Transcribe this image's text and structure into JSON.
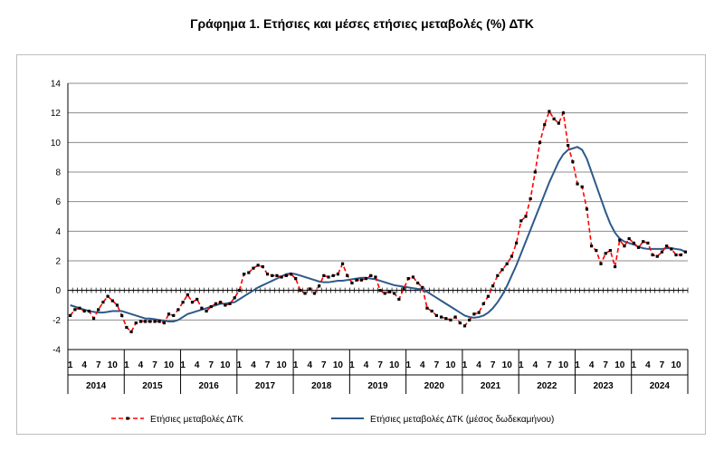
{
  "title": "Γράφημα 1. Ετήσιες και μέσες ετήσιες μεταβολές (%) ΔΤΚ",
  "chart_data": {
    "type": "line",
    "title": "Γράφημα 1. Ετήσιες και μέσες ετήσιες μεταβολές (%) ΔΤΚ",
    "xlabel": "",
    "ylabel": "",
    "ylim": [
      -4,
      14
    ],
    "yticks": [
      -4,
      -2,
      0,
      2,
      4,
      6,
      8,
      10,
      12,
      14
    ],
    "grid": true,
    "legend_position": "bottom",
    "month_tick_labels": [
      "1",
      "4",
      "7",
      "10"
    ],
    "years": [
      "2014",
      "2015",
      "2016",
      "2017",
      "2018",
      "2019",
      "2020",
      "2021",
      "2022",
      "2023",
      "2024"
    ],
    "x_start": "2014-01",
    "x_end": "2024-12",
    "series": [
      {
        "name": "Ετήσιες μεταβολές ΔΤΚ",
        "color": "#ff0000",
        "style": "dashed-with-markers",
        "values": [
          -1.7,
          -1.3,
          -1.2,
          -1.4,
          -1.4,
          -1.9,
          -1.3,
          -0.8,
          -0.4,
          -0.7,
          -1.0,
          -1.7,
          -2.5,
          -2.8,
          -2.2,
          -2.1,
          -2.1,
          -2.1,
          -2.1,
          -2.1,
          -2.2,
          -1.6,
          -1.7,
          -1.3,
          -0.8,
          -0.3,
          -0.8,
          -0.6,
          -1.2,
          -1.4,
          -1.1,
          -0.9,
          -0.8,
          -1.0,
          -0.9,
          -0.5,
          0.0,
          1.1,
          1.2,
          1.5,
          1.7,
          1.6,
          1.1,
          1.0,
          1.0,
          0.9,
          1.0,
          1.1,
          0.8,
          0.0,
          -0.2,
          0.1,
          -0.2,
          0.3,
          1.0,
          0.9,
          1.0,
          1.1,
          1.8,
          1.0,
          0.5,
          0.7,
          0.7,
          0.8,
          1.0,
          0.9,
          0.0,
          -0.2,
          -0.1,
          -0.2,
          -0.6,
          0.1,
          0.8,
          0.9,
          0.5,
          0.2,
          -1.2,
          -1.4,
          -1.7,
          -1.8,
          -1.9,
          -2.0,
          -1.8,
          -2.2,
          -2.4,
          -2.0,
          -1.6,
          -1.5,
          -0.9,
          -0.4,
          0.3,
          1.0,
          1.4,
          1.8,
          2.3,
          3.2,
          4.7,
          5.0,
          6.2,
          8.0,
          10.0,
          11.2,
          12.1,
          11.6,
          11.3,
          12.0,
          9.8,
          8.7,
          7.2,
          7.0,
          5.5,
          3.0,
          2.7,
          1.8,
          2.5,
          2.7,
          1.6,
          3.4,
          3.0,
          3.5,
          3.2,
          2.9,
          3.3,
          3.2,
          2.4,
          2.3,
          2.6,
          3.0,
          2.8,
          2.4,
          2.4,
          2.6
        ]
      },
      {
        "name": "Ετήσιες μεταβολές ΔΤΚ (μέσος δωδεκαμήνου)",
        "color": "#2e5a8a",
        "style": "solid",
        "values": [
          -1.0,
          -1.1,
          -1.2,
          -1.3,
          -1.4,
          -1.45,
          -1.5,
          -1.5,
          -1.45,
          -1.4,
          -1.4,
          -1.4,
          -1.5,
          -1.6,
          -1.7,
          -1.8,
          -1.9,
          -1.9,
          -1.95,
          -2.0,
          -2.05,
          -2.1,
          -2.1,
          -2.0,
          -1.8,
          -1.6,
          -1.5,
          -1.4,
          -1.3,
          -1.2,
          -1.1,
          -1.0,
          -0.9,
          -0.9,
          -0.85,
          -0.8,
          -0.6,
          -0.4,
          -0.2,
          0.0,
          0.2,
          0.35,
          0.5,
          0.65,
          0.8,
          0.95,
          1.1,
          1.15,
          1.1,
          1.0,
          0.9,
          0.8,
          0.7,
          0.6,
          0.55,
          0.55,
          0.6,
          0.65,
          0.65,
          0.7,
          0.75,
          0.8,
          0.85,
          0.85,
          0.8,
          0.75,
          0.65,
          0.55,
          0.45,
          0.35,
          0.3,
          0.25,
          0.2,
          0.15,
          0.1,
          0.05,
          -0.1,
          -0.3,
          -0.5,
          -0.7,
          -0.9,
          -1.1,
          -1.3,
          -1.5,
          -1.7,
          -1.8,
          -1.85,
          -1.8,
          -1.7,
          -1.5,
          -1.2,
          -0.8,
          -0.3,
          0.3,
          1.0,
          1.7,
          2.5,
          3.3,
          4.1,
          4.9,
          5.7,
          6.5,
          7.3,
          8.0,
          8.7,
          9.2,
          9.5,
          9.6,
          9.7,
          9.5,
          8.9,
          8.0,
          7.1,
          6.2,
          5.3,
          4.5,
          3.9,
          3.5,
          3.3,
          3.2,
          3.1,
          2.95,
          2.85,
          2.8,
          2.8,
          2.8,
          2.8,
          2.85,
          2.85,
          2.8,
          2.75,
          2.6
        ]
      }
    ]
  }
}
